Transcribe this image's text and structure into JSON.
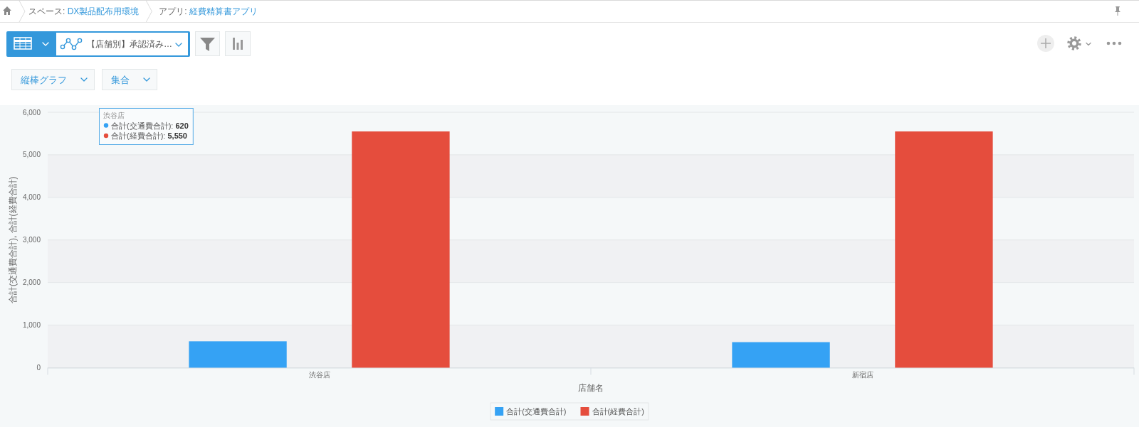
{
  "chart_data": {
    "type": "bar",
    "title": "【店舗別】承認済み…",
    "xlabel": "店舗名",
    "ylabel": "合計(交通費合計), 合計(経費合計)",
    "categories": [
      "渋谷店",
      "新宿店"
    ],
    "series": [
      {
        "name": "合計(交通費合計)",
        "color": "#35a2f4",
        "values": [
          620,
          600
        ]
      },
      {
        "name": "合計(経費合計)",
        "color": "#e54d3d",
        "values": [
          5550,
          5550
        ]
      }
    ],
    "ylim": [
      0,
      6000
    ],
    "yticks": [
      0,
      {
        "value": 1000,
        "label": "1,000"
      },
      {
        "value": 2000,
        "label": "2,000"
      },
      {
        "value": 3000,
        "label": "3,000"
      },
      {
        "value": 4000,
        "label": "4,000"
      },
      {
        "value": 5000,
        "label": "5,000"
      },
      {
        "value": 6000,
        "label": "6,000"
      }
    ],
    "grid": "y",
    "bands": [
      {
        "axis": "y",
        "from": 0,
        "to": 1000,
        "color": "#f0f1f3"
      },
      {
        "axis": "y",
        "from": 2000,
        "to": 3000,
        "color": "#f0f1f3"
      },
      {
        "axis": "y",
        "from": 4000,
        "to": 5000,
        "color": "#f0f1f3"
      }
    ],
    "legend": "bottom",
    "annotations": [
      "スペース: DX製品配布用環境",
      "アプリ: 経費精算書アプリ",
      "縦棒グラフ",
      "集合",
      "渋谷店",
      "合計(交通費合計): **620**",
      "合計(経費合計): **5,550**"
    ]
  }
}
